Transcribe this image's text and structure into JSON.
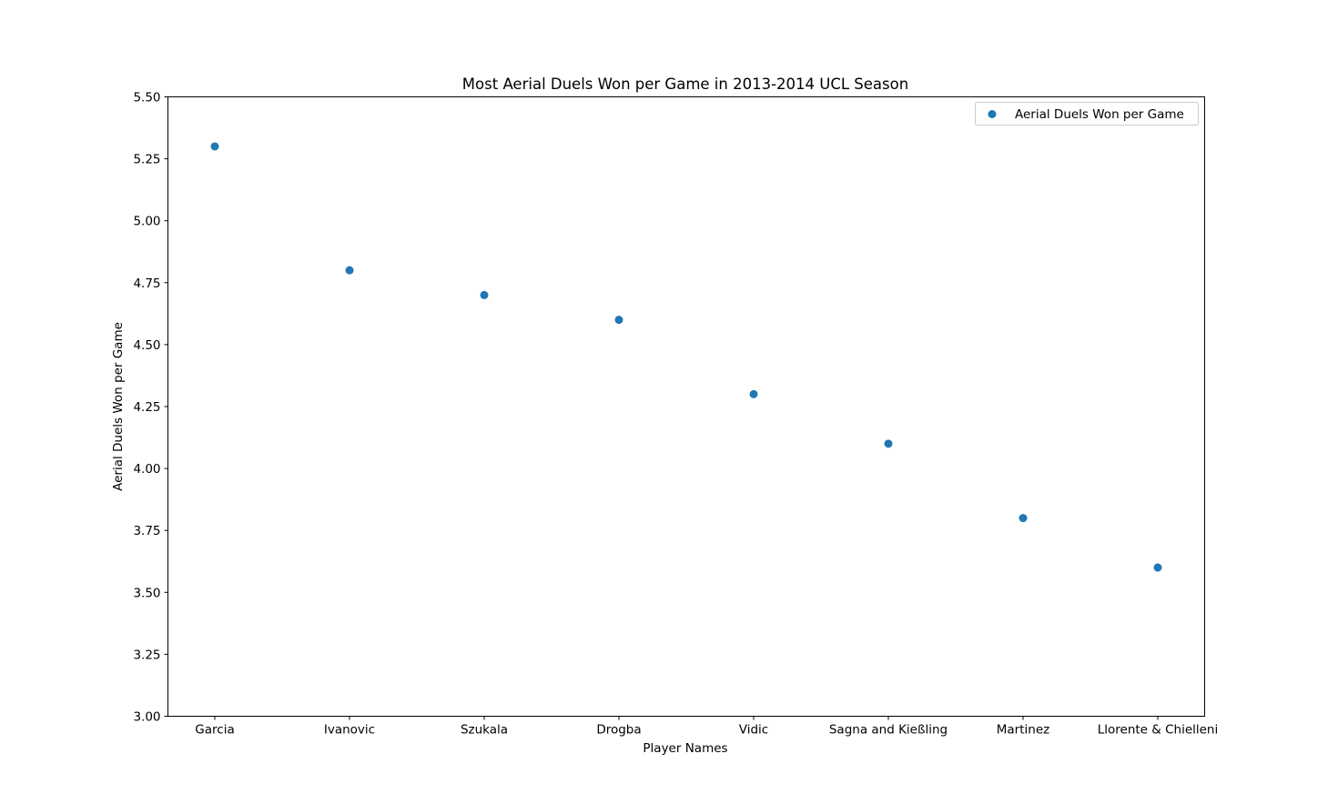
{
  "chart_data": {
    "type": "scatter",
    "title": "Most Aerial Duels Won per Game in 2013-2014 UCL Season",
    "xlabel": "Player Names",
    "ylabel": "Aerial Duels Won per Game",
    "categories": [
      "Garcia",
      "Ivanovic",
      "Szukala",
      "Drogba",
      "Vidic",
      "Sagna and Kießling",
      "Martinez",
      "Llorente & Chielleni"
    ],
    "series": [
      {
        "name": "Aerial Duels Won per Game",
        "values": [
          5.3,
          4.8,
          4.7,
          4.6,
          4.3,
          4.1,
          3.8,
          3.6
        ],
        "color": "#1f77b4"
      }
    ],
    "ylim": [
      3.0,
      5.5
    ],
    "yticks": [
      "3.00",
      "3.25",
      "3.50",
      "3.75",
      "4.00",
      "4.25",
      "4.50",
      "4.75",
      "5.00",
      "5.25",
      "5.50"
    ],
    "grid": false,
    "legend_position": "upper right"
  }
}
